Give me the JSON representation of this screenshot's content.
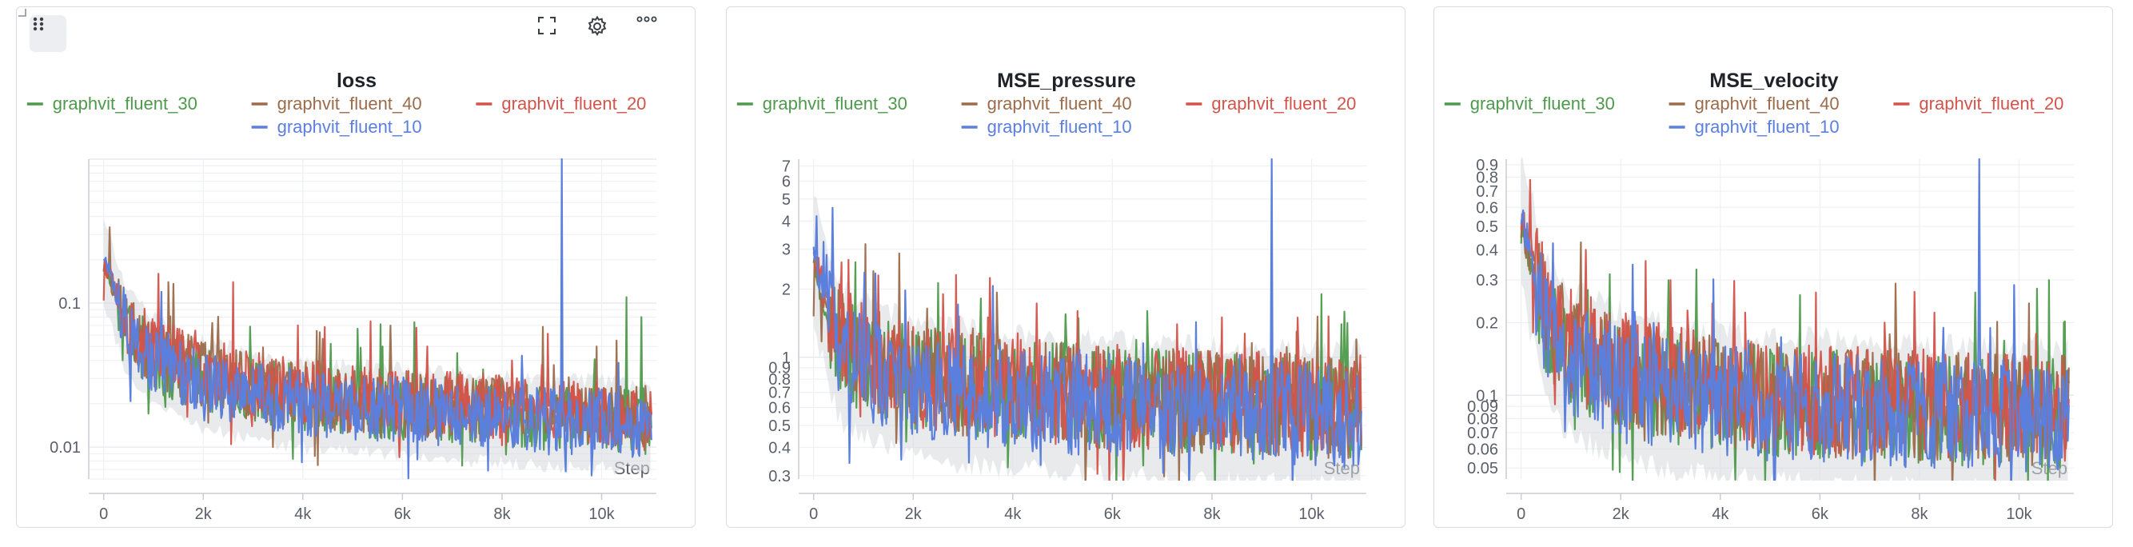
{
  "legend_colors": {
    "graphvit_fluent_30": "#4e9a4c",
    "graphvit_fluent_40": "#9c6b4a",
    "graphvit_fluent_20": "#d4534a",
    "graphvit_fluent_10": "#5b7fdc"
  },
  "toolbar": {
    "drag_icon": "drag-dots-icon",
    "expand_icon": "fullscreen-icon",
    "gear_icon": "gear-icon",
    "more_icon": "more-horizontal-icon"
  },
  "chart_data": [
    {
      "type": "line",
      "title": "loss",
      "xlabel": "Step",
      "ylabel": "",
      "yscale": "log",
      "xlim": [
        -300,
        11100
      ],
      "ylim": [
        0.006,
        1.0
      ],
      "x_ticks": [
        0,
        2000,
        4000,
        6000,
        8000,
        10000
      ],
      "x_tick_labels": [
        "0",
        "2k",
        "4k",
        "6k",
        "8k",
        "10k"
      ],
      "y_ticks": [
        0.01,
        0.1
      ],
      "y_tick_labels": [
        "0.01",
        "0.1"
      ],
      "grid": true,
      "legend_placement": "top",
      "series": [
        {
          "name": "graphvit_fluent_30",
          "color": "#4e9a4c",
          "points": [
            [
              0,
              0.18
            ],
            [
              500,
              0.06
            ],
            [
              1000,
              0.04
            ],
            [
              2000,
              0.03
            ],
            [
              3000,
              0.025
            ],
            [
              4000,
              0.022
            ],
            [
              5000,
              0.02
            ],
            [
              6000,
              0.019
            ],
            [
              7000,
              0.018
            ],
            [
              8000,
              0.017
            ],
            [
              9000,
              0.016
            ],
            [
              10000,
              0.016
            ],
            [
              11000,
              0.015
            ]
          ],
          "spikes": [
            [
              5600,
              0.05
            ],
            [
              7100,
              0.045
            ],
            [
              10500,
              0.11
            ],
            [
              10800,
              0.08
            ]
          ]
        },
        {
          "name": "graphvit_fluent_40",
          "color": "#9c6b4a",
          "points": [
            [
              0,
              0.18
            ],
            [
              500,
              0.065
            ],
            [
              1000,
              0.045
            ],
            [
              2000,
              0.032
            ],
            [
              3000,
              0.026
            ],
            [
              4000,
              0.023
            ],
            [
              5000,
              0.021
            ],
            [
              6000,
              0.02
            ],
            [
              7000,
              0.019
            ],
            [
              8000,
              0.018
            ],
            [
              9000,
              0.017
            ],
            [
              10000,
              0.016
            ],
            [
              11000,
              0.016
            ]
          ],
          "spikes": [
            [
              1300,
              0.14
            ],
            [
              9900,
              0.05
            ],
            [
              10300,
              0.055
            ]
          ]
        },
        {
          "name": "graphvit_fluent_20",
          "color": "#d4534a",
          "points": [
            [
              0,
              0.2
            ],
            [
              500,
              0.07
            ],
            [
              1000,
              0.047
            ],
            [
              2000,
              0.033
            ],
            [
              3000,
              0.027
            ],
            [
              4000,
              0.024
            ],
            [
              5000,
              0.022
            ],
            [
              6000,
              0.021
            ],
            [
              7000,
              0.02
            ],
            [
              8000,
              0.019
            ],
            [
              9000,
              0.018
            ],
            [
              10000,
              0.017
            ],
            [
              11000,
              0.016
            ]
          ],
          "spikes": [
            [
              1100,
              0.16
            ],
            [
              2600,
              0.14
            ],
            [
              3900,
              0.07
            ],
            [
              6500,
              0.05
            ],
            [
              8200,
              0.04
            ]
          ]
        },
        {
          "name": "graphvit_fluent_10",
          "color": "#5b7fdc",
          "points": [
            [
              0,
              0.21
            ],
            [
              500,
              0.06
            ],
            [
              1000,
              0.04
            ],
            [
              2000,
              0.028
            ],
            [
              3000,
              0.023
            ],
            [
              4000,
              0.02
            ],
            [
              5000,
              0.019
            ],
            [
              6000,
              0.018
            ],
            [
              7000,
              0.017
            ],
            [
              8000,
              0.016
            ],
            [
              9000,
              0.015
            ],
            [
              10000,
              0.015
            ],
            [
              11000,
              0.014
            ]
          ],
          "spikes": [
            [
              9200,
              1.0
            ],
            [
              1150,
              0.12
            ]
          ]
        }
      ]
    },
    {
      "type": "line",
      "title": "MSE_pressure",
      "xlabel": "Step",
      "ylabel": "",
      "yscale": "log",
      "xlim": [
        -300,
        11100
      ],
      "ylim": [
        0.29,
        7.5
      ],
      "x_ticks": [
        0,
        2000,
        4000,
        6000,
        8000,
        10000
      ],
      "x_tick_labels": [
        "0",
        "2k",
        "4k",
        "6k",
        "8k",
        "10k"
      ],
      "y_ticks": [
        0.3,
        0.4,
        0.5,
        0.6,
        0.7,
        0.8,
        0.9,
        1,
        2,
        3,
        4,
        5,
        6,
        7
      ],
      "y_tick_labels": [
        "0.3",
        "0.4",
        "0.5",
        "0.6",
        "0.7",
        "0.8",
        "0.9",
        "1",
        "2",
        "3",
        "4",
        "5",
        "6",
        "7"
      ],
      "grid": true,
      "legend_placement": "top",
      "series": [
        {
          "name": "graphvit_fluent_30",
          "color": "#4e9a4c",
          "points": [
            [
              0,
              2.5
            ],
            [
              500,
              1.2
            ],
            [
              1000,
              0.95
            ],
            [
              2000,
              0.8
            ],
            [
              3000,
              0.75
            ],
            [
              4000,
              0.7
            ],
            [
              5000,
              0.68
            ],
            [
              6000,
              0.66
            ],
            [
              7000,
              0.64
            ],
            [
              8000,
              0.62
            ],
            [
              9000,
              0.61
            ],
            [
              10000,
              0.6
            ],
            [
              11000,
              0.6
            ]
          ],
          "spikes": [
            [
              6700,
              1.6
            ],
            [
              10200,
              1.9
            ],
            [
              10600,
              1.4
            ]
          ]
        },
        {
          "name": "graphvit_fluent_40",
          "color": "#9c6b4a",
          "points": [
            [
              0,
              2.6
            ],
            [
              500,
              1.25
            ],
            [
              1000,
              1.0
            ],
            [
              2000,
              0.82
            ],
            [
              3000,
              0.76
            ],
            [
              4000,
              0.72
            ],
            [
              5000,
              0.69
            ],
            [
              6000,
              0.67
            ],
            [
              7000,
              0.65
            ],
            [
              8000,
              0.63
            ],
            [
              9000,
              0.62
            ],
            [
              10000,
              0.61
            ],
            [
              11000,
              0.61
            ]
          ],
          "spikes": [
            [
              1200,
              2.4
            ],
            [
              9700,
              1.3
            ],
            [
              10900,
              1.2
            ]
          ]
        },
        {
          "name": "graphvit_fluent_20",
          "color": "#d4534a",
          "points": [
            [
              0,
              2.7
            ],
            [
              500,
              1.3
            ],
            [
              1000,
              1.02
            ],
            [
              2000,
              0.84
            ],
            [
              3000,
              0.78
            ],
            [
              4000,
              0.73
            ],
            [
              5000,
              0.7
            ],
            [
              6000,
              0.68
            ],
            [
              7000,
              0.66
            ],
            [
              8000,
              0.64
            ],
            [
              9000,
              0.63
            ],
            [
              10000,
              0.62
            ],
            [
              11000,
              0.62
            ]
          ],
          "spikes": [
            [
              1300,
              2.3
            ],
            [
              2600,
              1.9
            ],
            [
              3500,
              1.5
            ],
            [
              5300,
              1.6
            ],
            [
              7300,
              1.4
            ],
            [
              8200,
              1.5
            ]
          ]
        },
        {
          "name": "graphvit_fluent_10",
          "color": "#5b7fdc",
          "points": [
            [
              0,
              2.8
            ],
            [
              500,
              1.1
            ],
            [
              1000,
              0.9
            ],
            [
              2000,
              0.76
            ],
            [
              3000,
              0.7
            ],
            [
              4000,
              0.66
            ],
            [
              5000,
              0.63
            ],
            [
              6000,
              0.61
            ],
            [
              7000,
              0.6
            ],
            [
              8000,
              0.58
            ],
            [
              9000,
              0.57
            ],
            [
              10000,
              0.56
            ],
            [
              11000,
              0.55
            ]
          ],
          "spikes": [
            [
              9200,
              7.5
            ]
          ]
        }
      ]
    },
    {
      "type": "line",
      "title": "MSE_velocity",
      "xlabel": "Step",
      "ylabel": "",
      "yscale": "log",
      "xlim": [
        -300,
        11100
      ],
      "ylim": [
        0.045,
        0.95
      ],
      "x_ticks": [
        0,
        2000,
        4000,
        6000,
        8000,
        10000
      ],
      "x_tick_labels": [
        "0",
        "2k",
        "4k",
        "6k",
        "8k",
        "10k"
      ],
      "y_ticks": [
        0.05,
        0.06,
        0.07,
        0.08,
        0.09,
        0.1,
        0.2,
        0.3,
        0.4,
        0.5,
        0.6,
        0.7,
        0.8,
        0.9
      ],
      "y_tick_labels": [
        "0.05",
        "0.06",
        "0.07",
        "0.08",
        "0.09",
        "0.1",
        "0.2",
        "0.3",
        "0.4",
        "0.5",
        "0.6",
        "0.7",
        "0.8",
        "0.9"
      ],
      "grid": true,
      "legend_placement": "top",
      "series": [
        {
          "name": "graphvit_fluent_30",
          "color": "#4e9a4c",
          "points": [
            [
              0,
              0.5
            ],
            [
              500,
              0.2
            ],
            [
              1000,
              0.15
            ],
            [
              2000,
              0.12
            ],
            [
              3000,
              0.11
            ],
            [
              4000,
              0.1
            ],
            [
              5000,
              0.095
            ],
            [
              6000,
              0.092
            ],
            [
              7000,
              0.09
            ],
            [
              8000,
              0.088
            ],
            [
              9000,
              0.086
            ],
            [
              10000,
              0.085
            ],
            [
              11000,
              0.084
            ]
          ],
          "spikes": [
            [
              5600,
              0.26
            ],
            [
              10600,
              0.3
            ],
            [
              10900,
              0.2
            ]
          ]
        },
        {
          "name": "graphvit_fluent_40",
          "color": "#9c6b4a",
          "points": [
            [
              0,
              0.52
            ],
            [
              500,
              0.21
            ],
            [
              1000,
              0.16
            ],
            [
              2000,
              0.125
            ],
            [
              3000,
              0.112
            ],
            [
              4000,
              0.103
            ],
            [
              5000,
              0.097
            ],
            [
              6000,
              0.094
            ],
            [
              7000,
              0.092
            ],
            [
              8000,
              0.09
            ],
            [
              9000,
              0.088
            ],
            [
              10000,
              0.087
            ],
            [
              11000,
              0.086
            ]
          ],
          "spikes": [
            [
              1200,
              0.43
            ],
            [
              10200,
              0.24
            ]
          ]
        },
        {
          "name": "graphvit_fluent_20",
          "color": "#d4534a",
          "points": [
            [
              0,
              0.55
            ],
            [
              500,
              0.22
            ],
            [
              1000,
              0.17
            ],
            [
              2000,
              0.13
            ],
            [
              3000,
              0.115
            ],
            [
              4000,
              0.105
            ],
            [
              5000,
              0.1
            ],
            [
              6000,
              0.096
            ],
            [
              7000,
              0.094
            ],
            [
              8000,
              0.092
            ],
            [
              9000,
              0.09
            ],
            [
              10000,
              0.089
            ],
            [
              11000,
              0.088
            ]
          ],
          "spikes": [
            [
              1300,
              0.4
            ],
            [
              2500,
              0.36
            ],
            [
              3000,
              0.3
            ],
            [
              4500,
              0.22
            ],
            [
              7300,
              0.2
            ],
            [
              8300,
              0.22
            ]
          ]
        },
        {
          "name": "graphvit_fluent_10",
          "color": "#5b7fdc",
          "points": [
            [
              0,
              0.57
            ],
            [
              500,
              0.19
            ],
            [
              1000,
              0.14
            ],
            [
              2000,
              0.115
            ],
            [
              3000,
              0.1
            ],
            [
              4000,
              0.095
            ],
            [
              5000,
              0.09
            ],
            [
              6000,
              0.088
            ],
            [
              7000,
              0.086
            ],
            [
              8000,
              0.084
            ],
            [
              9000,
              0.083
            ],
            [
              10000,
              0.082
            ],
            [
              11000,
              0.081
            ]
          ],
          "spikes": [
            [
              9200,
              0.95
            ],
            [
              5100,
              0.045
            ]
          ]
        }
      ]
    }
  ]
}
